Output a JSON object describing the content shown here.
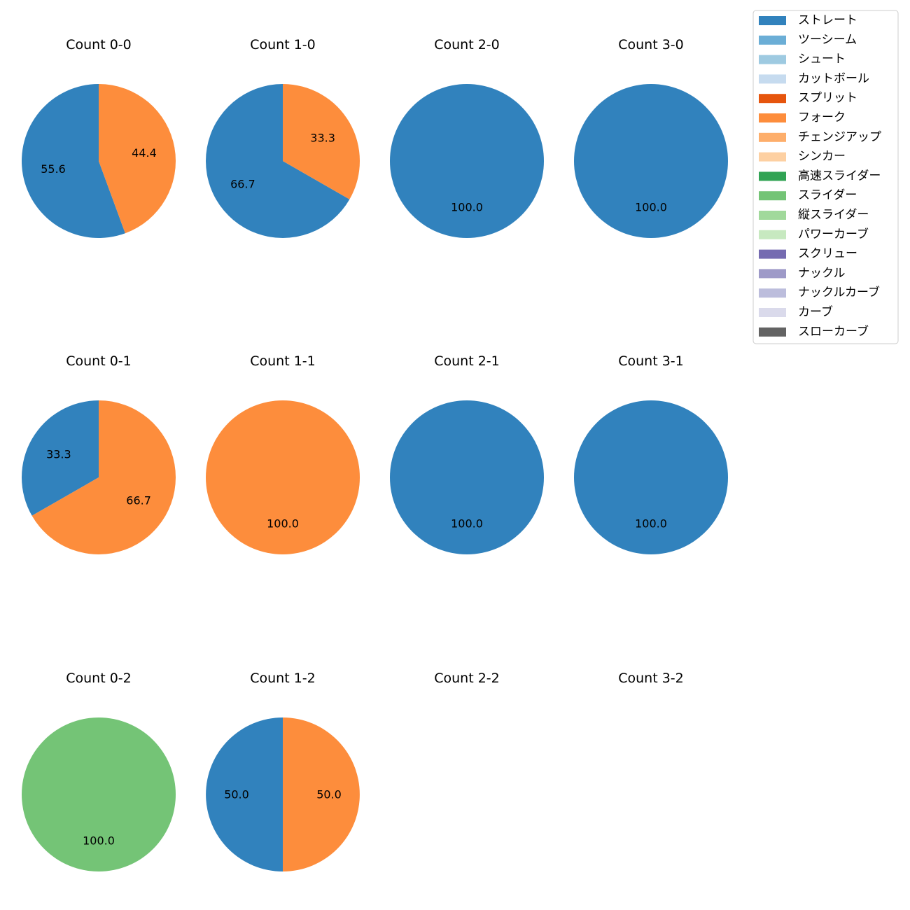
{
  "colors": {
    "ストレート": "#3182bd",
    "ツーシーム": "#6baed6",
    "シュート": "#9ecae1",
    "カットボール": "#c6dbef",
    "スプリット": "#e6550d",
    "フォーク": "#fd8d3c",
    "チェンジアップ": "#fdae6b",
    "シンカー": "#fdd0a2",
    "高速スライダー": "#31a354",
    "スライダー": "#74c476",
    "縦スライダー": "#a1d99b",
    "パワーカーブ": "#c7e9c0",
    "スクリュー": "#756bb1",
    "ナックル": "#9e9ac8",
    "ナックルカーブ": "#bcbddc",
    "カーブ": "#dadaeb",
    "スローカーブ": "#636363"
  },
  "chart_data": {
    "type": "pie",
    "legend": {
      "placement": "top-right",
      "entries": [
        "ストレート",
        "ツーシーム",
        "シュート",
        "カットボール",
        "スプリット",
        "フォーク",
        "チェンジアップ",
        "シンカー",
        "高速スライダー",
        "スライダー",
        "縦スライダー",
        "パワーカーブ",
        "スクリュー",
        "ナックル",
        "ナックルカーブ",
        "カーブ",
        "スローカーブ"
      ]
    },
    "panels": [
      {
        "title": "Count 0-0",
        "slices": [
          {
            "label": "ストレート",
            "value": 55.6,
            "text": "55.6"
          },
          {
            "label": "フォーク",
            "value": 44.4,
            "text": "44.4"
          }
        ]
      },
      {
        "title": "Count 1-0",
        "slices": [
          {
            "label": "ストレート",
            "value": 66.7,
            "text": "66.7"
          },
          {
            "label": "フォーク",
            "value": 33.3,
            "text": "33.3"
          }
        ]
      },
      {
        "title": "Count 2-0",
        "slices": [
          {
            "label": "ストレート",
            "value": 100.0,
            "text": "100.0"
          }
        ]
      },
      {
        "title": "Count 3-0",
        "slices": [
          {
            "label": "ストレート",
            "value": 100.0,
            "text": "100.0"
          }
        ]
      },
      {
        "title": "Count 0-1",
        "slices": [
          {
            "label": "ストレート",
            "value": 33.3,
            "text": "33.3"
          },
          {
            "label": "フォーク",
            "value": 66.7,
            "text": "66.7"
          }
        ]
      },
      {
        "title": "Count 1-1",
        "slices": [
          {
            "label": "フォーク",
            "value": 100.0,
            "text": "100.0"
          }
        ]
      },
      {
        "title": "Count 2-1",
        "slices": [
          {
            "label": "ストレート",
            "value": 100.0,
            "text": "100.0"
          }
        ]
      },
      {
        "title": "Count 3-1",
        "slices": [
          {
            "label": "ストレート",
            "value": 100.0,
            "text": "100.0"
          }
        ]
      },
      {
        "title": "Count 0-2",
        "slices": [
          {
            "label": "スライダー",
            "value": 100.0,
            "text": "100.0"
          }
        ]
      },
      {
        "title": "Count 1-2",
        "slices": [
          {
            "label": "ストレート",
            "value": 50.0,
            "text": "50.0"
          },
          {
            "label": "フォーク",
            "value": 50.0,
            "text": "50.0"
          }
        ]
      },
      {
        "title": "Count 2-2",
        "slices": []
      },
      {
        "title": "Count 3-2",
        "slices": []
      }
    ]
  }
}
